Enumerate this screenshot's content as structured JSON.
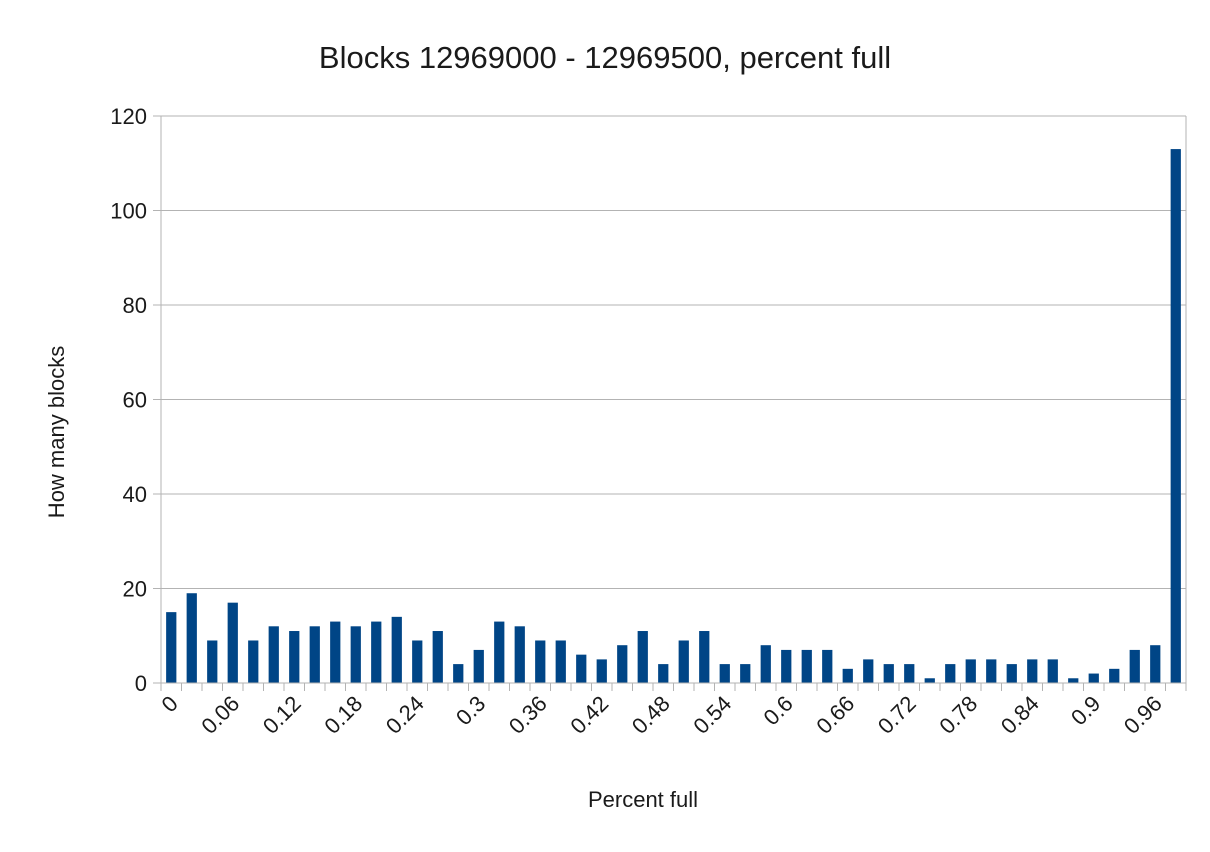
{
  "chart_data": {
    "type": "bar",
    "title": "Blocks 12969000 - 12969500, percent full",
    "xlabel": "Percent full",
    "ylabel": "How many blocks",
    "ylim": [
      0,
      120
    ],
    "yticks": [
      0,
      20,
      40,
      60,
      80,
      100,
      120
    ],
    "xtick_labels": [
      "0",
      "0.06",
      "0.12",
      "0.18",
      "0.24",
      "0.3",
      "0.36",
      "0.42",
      "0.48",
      "0.54",
      "0.6",
      "0.66",
      "0.72",
      "0.78",
      "0.84",
      "0.9",
      "0.96"
    ],
    "categories": [
      "0",
      "0.02",
      "0.04",
      "0.06",
      "0.08",
      "0.1",
      "0.12",
      "0.14",
      "0.16",
      "0.18",
      "0.2",
      "0.22",
      "0.24",
      "0.26",
      "0.28",
      "0.3",
      "0.32",
      "0.34",
      "0.36",
      "0.38",
      "0.4",
      "0.42",
      "0.44",
      "0.46",
      "0.48",
      "0.5",
      "0.52",
      "0.54",
      "0.56",
      "0.58",
      "0.6",
      "0.62",
      "0.64",
      "0.66",
      "0.68",
      "0.7",
      "0.72",
      "0.74",
      "0.76",
      "0.78",
      "0.8",
      "0.82",
      "0.84",
      "0.86",
      "0.88",
      "0.9",
      "0.92",
      "0.94",
      "0.96",
      "0.98"
    ],
    "values": [
      15,
      19,
      9,
      17,
      9,
      12,
      11,
      12,
      13,
      12,
      13,
      14,
      9,
      11,
      4,
      7,
      13,
      12,
      9,
      9,
      6,
      5,
      8,
      11,
      4,
      9,
      11,
      4,
      4,
      8,
      7,
      7,
      7,
      3,
      5,
      4,
      4,
      1,
      4,
      5,
      5,
      4,
      5,
      5,
      1,
      2,
      3,
      7,
      8,
      113
    ],
    "grid": true,
    "legend": "none",
    "bar_color": "#004586"
  }
}
